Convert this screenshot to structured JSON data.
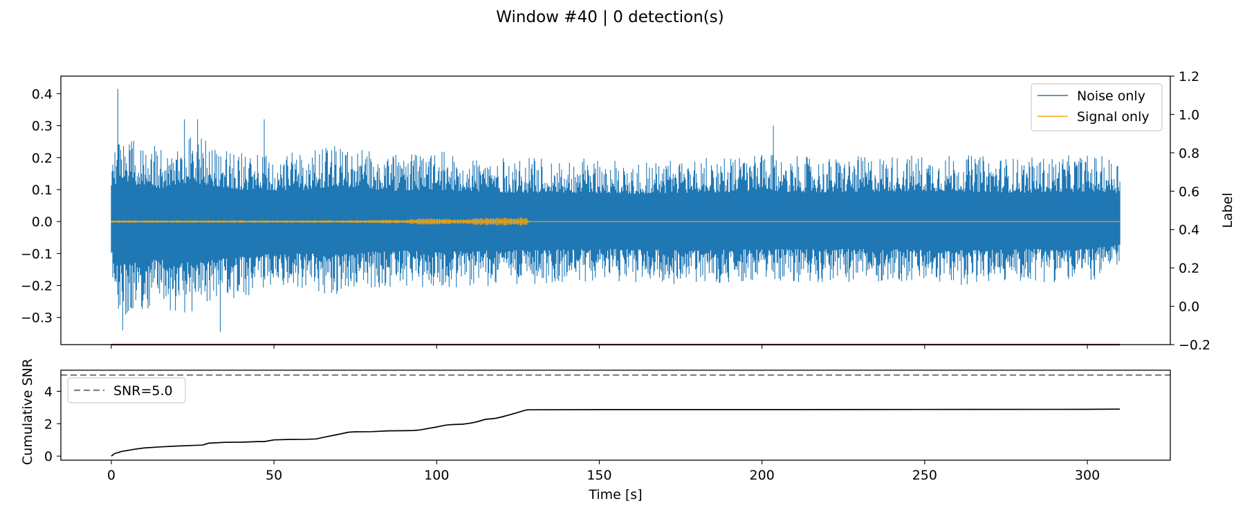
{
  "figure": {
    "title": "Window #40 | 0 detection(s)"
  },
  "colors": {
    "noise": "#1f77b4",
    "signal": "#ffa500",
    "label_line": "#8b0000",
    "snr_line": "#000000",
    "threshold": "#808080"
  },
  "chart_data": [
    {
      "type": "line",
      "title": "",
      "xlabel": "",
      "ylabel": "",
      "y2label": "Label",
      "xlim": [
        -15.5,
        325.5
      ],
      "ylim": [
        -0.385,
        0.455
      ],
      "y2lim": [
        -0.2,
        1.2
      ],
      "xticks": [
        0,
        50,
        100,
        150,
        200,
        250,
        300
      ],
      "xticks_labeled": false,
      "yticks": [
        -0.3,
        -0.2,
        -0.1,
        0.0,
        0.1,
        0.2,
        0.3,
        0.4
      ],
      "ytick_labels": [
        "−0.3",
        "−0.2",
        "−0.1",
        "0.0",
        "0.1",
        "0.2",
        "0.3",
        "0.4"
      ],
      "y2ticks": [
        -0.2,
        0.0,
        0.2,
        0.4,
        0.6,
        0.8,
        1.0,
        1.2
      ],
      "y2tick_labels": [
        "−0.2",
        "0.0",
        "0.2",
        "0.4",
        "0.6",
        "0.8",
        "1.0",
        "1.2"
      ],
      "legend": {
        "placement": "upper right",
        "entries": [
          "Noise only",
          "Signal only"
        ]
      },
      "series": [
        {
          "name": "Noise only",
          "axis": "left",
          "x_range": [
            0,
            310
          ],
          "envelope": {
            "x": [
              0,
              2,
              5,
              10,
              15,
              20,
              25,
              30,
              40,
              50,
              60,
              70,
              80,
              90,
              100,
              120,
              140,
              160,
              180,
              200,
              220,
              240,
              260,
              280,
              300,
              310
            ],
            "upper": [
              0.17,
              0.3,
              0.26,
              0.25,
              0.23,
              0.26,
              0.27,
              0.25,
              0.22,
              0.21,
              0.22,
              0.24,
              0.22,
              0.21,
              0.22,
              0.2,
              0.2,
              0.19,
              0.2,
              0.21,
              0.2,
              0.21,
              0.21,
              0.2,
              0.21,
              0.2
            ],
            "lower": [
              -0.16,
              -0.31,
              -0.29,
              -0.28,
              -0.26,
              -0.29,
              -0.28,
              -0.27,
              -0.24,
              -0.22,
              -0.22,
              -0.23,
              -0.21,
              -0.2,
              -0.21,
              -0.2,
              -0.19,
              -0.19,
              -0.2,
              -0.19,
              -0.19,
              -0.19,
              -0.2,
              -0.19,
              -0.19,
              -0.16
            ]
          },
          "peaks": [
            {
              "x": 2.0,
              "y": 0.415
            },
            {
              "x": 3.5,
              "y": -0.34
            },
            {
              "x": 22.5,
              "y": 0.32
            },
            {
              "x": 26.5,
              "y": 0.32
            },
            {
              "x": 33.5,
              "y": -0.345
            },
            {
              "x": 47.0,
              "y": 0.32
            },
            {
              "x": 203.5,
              "y": 0.3
            }
          ]
        },
        {
          "name": "Signal only",
          "axis": "left",
          "x_range": [
            0,
            310
          ],
          "amplitude": {
            "x": [
              0,
              30,
              50,
              70,
              80,
              85,
              90,
              92,
              95,
              100,
              105,
              110,
              111,
              112,
              115,
              120,
              124,
              125,
              128,
              128.2,
              310
            ],
            "a": [
              0.004,
              0.004,
              0.004,
              0.004,
              0.005,
              0.006,
              0.005,
              0.008,
              0.01,
              0.01,
              0.008,
              0.008,
              0.01,
              0.011,
              0.012,
              0.012,
              0.013,
              0.013,
              0.013,
              0.0003,
              0.0003
            ]
          }
        },
        {
          "name": "Label",
          "axis": "right",
          "x": [
            0,
            310
          ],
          "y": [
            -0.2,
            -0.2
          ]
        }
      ]
    },
    {
      "type": "line",
      "title": "",
      "xlabel": "Time [s]",
      "ylabel": "Cumulative SNR",
      "xlim": [
        -15.5,
        325.5
      ],
      "ylim": [
        -0.25,
        5.3
      ],
      "xticks": [
        0,
        50,
        100,
        150,
        200,
        250,
        300
      ],
      "xtick_labels": [
        "0",
        "50",
        "100",
        "150",
        "200",
        "250",
        "300"
      ],
      "yticks": [
        0,
        2,
        4
      ],
      "ytick_labels": [
        "0",
        "2",
        "4"
      ],
      "legend": {
        "placement": "upper left",
        "entries": [
          "SNR=5.0"
        ]
      },
      "threshold": {
        "label": "SNR=5.0",
        "value": 5.0
      },
      "series": [
        {
          "name": "",
          "x": [
            0,
            1,
            2,
            3,
            5,
            7,
            10,
            15,
            20,
            25,
            28,
            30,
            35,
            40,
            45,
            47,
            50,
            55,
            60,
            63,
            65,
            70,
            73,
            75,
            80,
            85,
            90,
            93,
            95,
            100,
            103,
            105,
            108,
            110,
            112,
            115,
            118,
            120,
            123,
            125,
            127,
            128,
            150,
            200,
            250,
            300,
            310
          ],
          "y": [
            0.0,
            0.15,
            0.22,
            0.28,
            0.35,
            0.42,
            0.5,
            0.57,
            0.62,
            0.66,
            0.68,
            0.8,
            0.85,
            0.86,
            0.9,
            0.9,
            1.0,
            1.03,
            1.04,
            1.06,
            1.15,
            1.35,
            1.48,
            1.5,
            1.51,
            1.56,
            1.57,
            1.58,
            1.62,
            1.8,
            1.92,
            1.95,
            1.97,
            2.02,
            2.1,
            2.27,
            2.33,
            2.42,
            2.58,
            2.7,
            2.82,
            2.86,
            2.87,
            2.87,
            2.88,
            2.89,
            2.9
          ]
        }
      ]
    }
  ]
}
